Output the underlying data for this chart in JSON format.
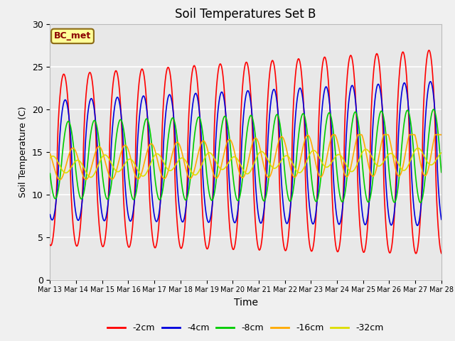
{
  "title": "Soil Temperatures Set B",
  "xlabel": "Time",
  "ylabel": "Soil Temperature (C)",
  "annotation": "BC_met",
  "ylim": [
    0,
    30
  ],
  "legend_labels": [
    "-2cm",
    "-4cm",
    "-8cm",
    "-16cm",
    "-32cm"
  ],
  "line_colors": [
    "#ff0000",
    "#0000dd",
    "#00cc00",
    "#ffaa00",
    "#dddd00"
  ],
  "x_tick_labels": [
    "Mar 13",
    "Mar 14",
    "Mar 15",
    "Mar 16",
    "Mar 17",
    "Mar 18",
    "Mar 19",
    "Mar 20",
    "Mar 21",
    "Mar 22",
    "Mar 23",
    "Mar 24",
    "Mar 25",
    "Mar 26",
    "Mar 27",
    "Mar 28"
  ],
  "background_color": "#e8e8e8",
  "fig_background": "#f0f0f0",
  "num_points": 1500
}
